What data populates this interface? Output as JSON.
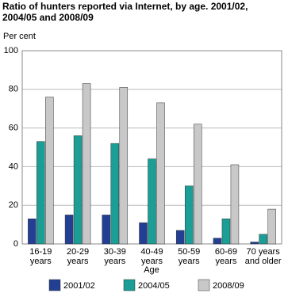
{
  "chart_data": {
    "type": "bar",
    "title": "Ratio of hunters reported via Internet, by age. 2001/02, 2004/05 and 2008/09",
    "y_label": "Per cent",
    "x_label": "Age",
    "categories": [
      "16-19\nyears",
      "20-29\nyears",
      "30-39\nyears",
      "40-49\nyears",
      "50-59\nyears",
      "60-69\nyears",
      "70 years\nand older"
    ],
    "series": [
      {
        "name": "2001/02",
        "color": "#233f93",
        "values": [
          13,
          15,
          15,
          11,
          7,
          3,
          1
        ]
      },
      {
        "name": "2004/05",
        "color": "#1a9e96",
        "values": [
          53,
          56,
          52,
          44,
          30,
          13,
          5
        ]
      },
      {
        "name": "2008/09",
        "color": "#c8c8c8",
        "values": [
          76,
          83,
          81,
          73,
          62,
          41,
          18
        ]
      }
    ],
    "ylim": [
      0,
      100
    ],
    "yticks": [
      0,
      20,
      40,
      60,
      80,
      100
    ],
    "grid": true
  }
}
